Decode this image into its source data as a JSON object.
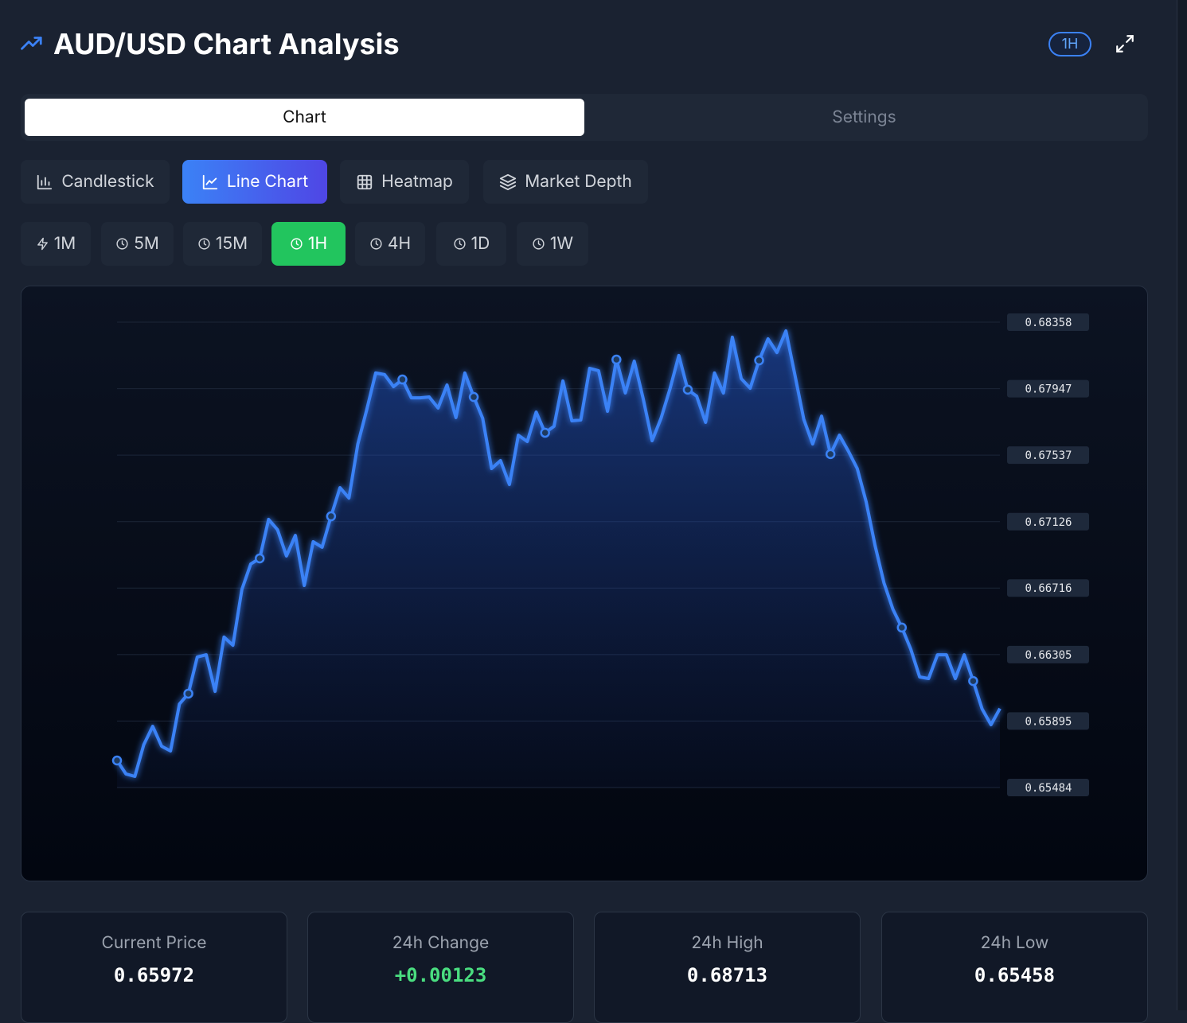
{
  "header": {
    "title": "AUD/USD Chart Analysis",
    "badge": "1H"
  },
  "tabs": [
    "Chart",
    "Settings"
  ],
  "chart_types": [
    "Candlestick",
    "Line Chart",
    "Heatmap",
    "Market Depth"
  ],
  "timeframes": [
    "1M",
    "5M",
    "15M",
    "1H",
    "4H",
    "1D",
    "1W"
  ],
  "chart_data": {
    "type": "line",
    "color": "#3b82f6",
    "grid": true,
    "ylim": [
      0.65484,
      0.68358
    ],
    "yticks": [
      0.68358,
      0.67947,
      0.67537,
      0.67126,
      0.66716,
      0.66305,
      0.65895,
      0.65484
    ],
    "values": [
      0.65651,
      0.65568,
      0.65553,
      0.65749,
      0.65862,
      0.65739,
      0.6571,
      0.66,
      0.66064,
      0.6629,
      0.66304,
      0.66078,
      0.66413,
      0.66363,
      0.66707,
      0.66865,
      0.66899,
      0.6714,
      0.67076,
      0.66914,
      0.67041,
      0.66732,
      0.67002,
      0.66968,
      0.67159,
      0.67336,
      0.67272,
      0.67606,
      0.67818,
      0.68044,
      0.68034,
      0.6796,
      0.68004,
      0.67891,
      0.67891,
      0.67896,
      0.67828,
      0.6797,
      0.67769,
      0.68044,
      0.67896,
      0.67764,
      0.67454,
      0.67503,
      0.67356,
      0.6766,
      0.67621,
      0.67803,
      0.67675,
      0.67715,
      0.67995,
      0.67749,
      0.67754,
      0.68073,
      0.68058,
      0.67808,
      0.68127,
      0.67921,
      0.68117,
      0.67886,
      0.67626,
      0.67764,
      0.67945,
      0.68152,
      0.67941,
      0.67901,
      0.67739,
      0.68044,
      0.67921,
      0.68265,
      0.68009,
      0.6795,
      0.68122,
      0.68255,
      0.68171,
      0.68304,
      0.68034,
      0.67759,
      0.67606,
      0.67778,
      0.67543,
      0.6766,
      0.67562,
      0.67454,
      0.67248,
      0.66978,
      0.66747,
      0.66585,
      0.66472,
      0.66339,
      0.66167,
      0.66157,
      0.66304,
      0.66304,
      0.66157,
      0.66304,
      0.66142,
      0.6597,
      0.65872,
      0.65972
    ]
  },
  "stats": [
    {
      "label": "Current Price",
      "value": "0.65972"
    },
    {
      "label": "24h Change",
      "value": "+0.00123"
    },
    {
      "label": "24h High",
      "value": "0.68713"
    },
    {
      "label": "24h Low",
      "value": "0.65458"
    }
  ]
}
